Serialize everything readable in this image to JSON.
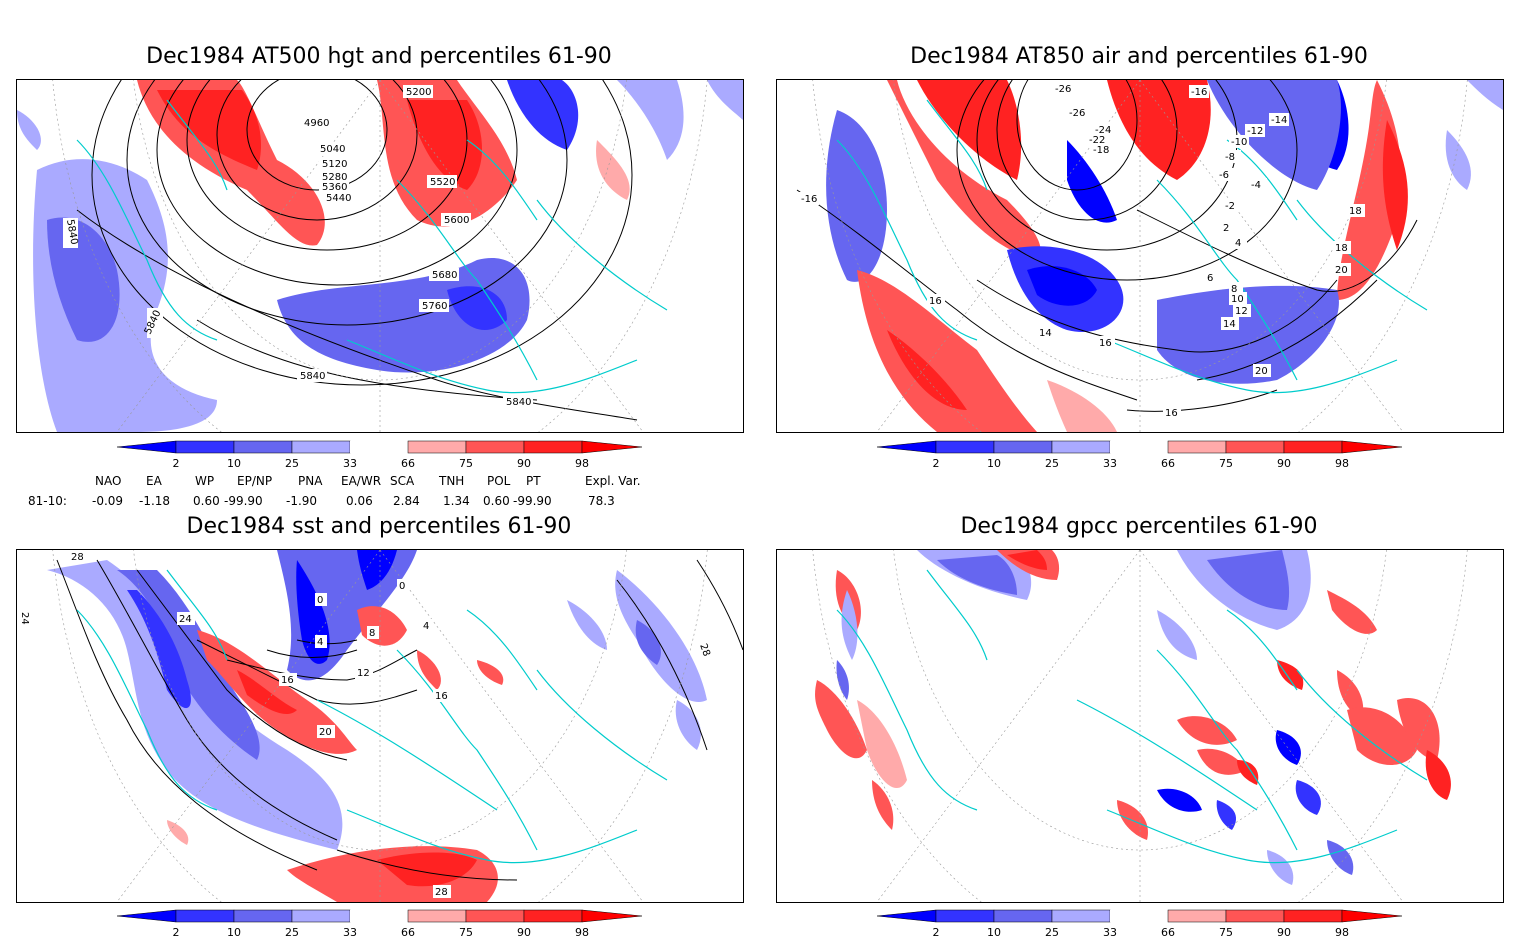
{
  "panels": [
    {
      "id": "hgt500",
      "title": "Dec1984 AT500 hgt and percentiles 61-90",
      "contour_labels": [
        "4960",
        "5040",
        "5120",
        "5200",
        "5280",
        "5360",
        "5440",
        "5520",
        "5600",
        "5680",
        "5760",
        "5840",
        "5840",
        "5840",
        "5840"
      ]
    },
    {
      "id": "air850",
      "title": "Dec1984 AT850 air and percentiles 61-90",
      "contour_labels": [
        "-26",
        "-26",
        "-24",
        "-22",
        "-18",
        "-16",
        "-16",
        "-14",
        "-12",
        "-10",
        "-8",
        "-6",
        "-4",
        "-2",
        "2",
        "4",
        "6",
        "8",
        "10",
        "12",
        "14",
        "14",
        "16",
        "16",
        "16",
        "18",
        "18",
        "20",
        "20"
      ]
    },
    {
      "id": "sst",
      "title": "Dec1984 sst and percentiles 61-90",
      "contour_labels": [
        "0",
        "0",
        "4",
        "4",
        "8",
        "12",
        "16",
        "16",
        "20",
        "24",
        "24",
        "28",
        "28",
        "28"
      ]
    },
    {
      "id": "gpcc",
      "title": "Dec1984 gpcc percentiles 61-90",
      "contour_labels": []
    }
  ],
  "colorbar": {
    "ticks": [
      "2",
      "10",
      "25",
      "33",
      "66",
      "75",
      "90",
      "98"
    ],
    "colors": {
      "c_lt2": "#0000ff",
      "c_2_10": "#3333ff",
      "c_10_25": "#6666f0",
      "c_25_33": "#aaaaff",
      "c_33_66": "#ffffff",
      "c_66_75": "#ffaaaa",
      "c_75_90": "#ff5555",
      "c_90_98": "#ff2222",
      "c_gt98": "#ff0000"
    }
  },
  "indices": {
    "headers": [
      "NAO",
      "EA",
      "WP",
      "EP/NP",
      "PNA",
      "EA/WR",
      "SCA",
      "TNH",
      "POL",
      "PT",
      "Expl. Var."
    ],
    "row_label": "81-10:",
    "values": [
      "-0.09",
      "-1.18",
      "0.60",
      "-99.90",
      "-1.90",
      "0.06",
      "2.84",
      "1.34",
      "0.60",
      "-99.90",
      "78.3"
    ]
  },
  "colors": {
    "coastline": "#00cccc",
    "contour": "#000000",
    "grid": "#999999"
  }
}
